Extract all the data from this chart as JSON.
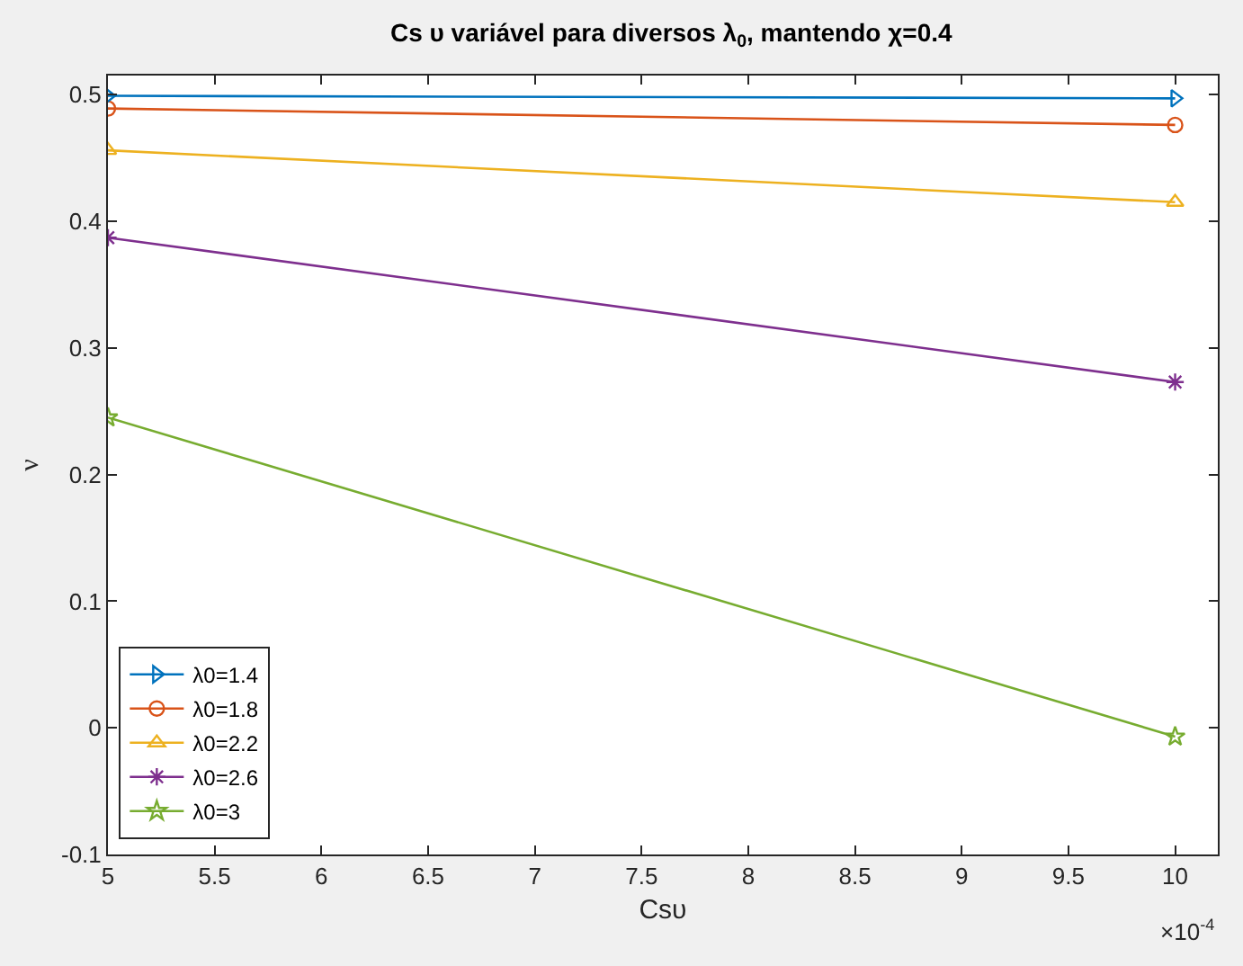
{
  "chart_data": {
    "type": "line",
    "title": "Cs υ variável para diversos λ$_{0}$, mantendo χ=0.4",
    "xlabel": "Csυ",
    "ylabel": "ν",
    "x": [
      5,
      10
    ],
    "xlim": [
      5,
      10.2
    ],
    "xticks": [
      5,
      5.5,
      6,
      6.5,
      7,
      7.5,
      8,
      8.5,
      9,
      9.5,
      10
    ],
    "ylim": [
      -0.1,
      0.515
    ],
    "yticks": [
      -0.1,
      0,
      0.1,
      0.2,
      0.3,
      0.4,
      0.5
    ],
    "annotations": [
      "×10$^{-4}$"
    ],
    "grid": false,
    "legend": "bottom left",
    "line_style": "solid",
    "series": [
      {
        "name": "λ0=1.4",
        "color": "#0072bd",
        "marker": "triangle-right",
        "values": [
          0.499,
          0.497
        ]
      },
      {
        "name": "λ0=1.8",
        "color": "#d95319",
        "marker": "circle",
        "values": [
          0.489,
          0.476
        ]
      },
      {
        "name": "λ0=2.2",
        "color": "#edb120",
        "marker": "triangle",
        "values": [
          0.456,
          0.415
        ]
      },
      {
        "name": "λ0=2.6",
        "color": "#7e2f8e",
        "marker": "cross",
        "values": [
          0.387,
          0.273
        ]
      },
      {
        "name": "λ0=3",
        "color": "#77ac30",
        "marker": "star",
        "values": [
          0.245,
          -0.007
        ]
      }
    ]
  }
}
